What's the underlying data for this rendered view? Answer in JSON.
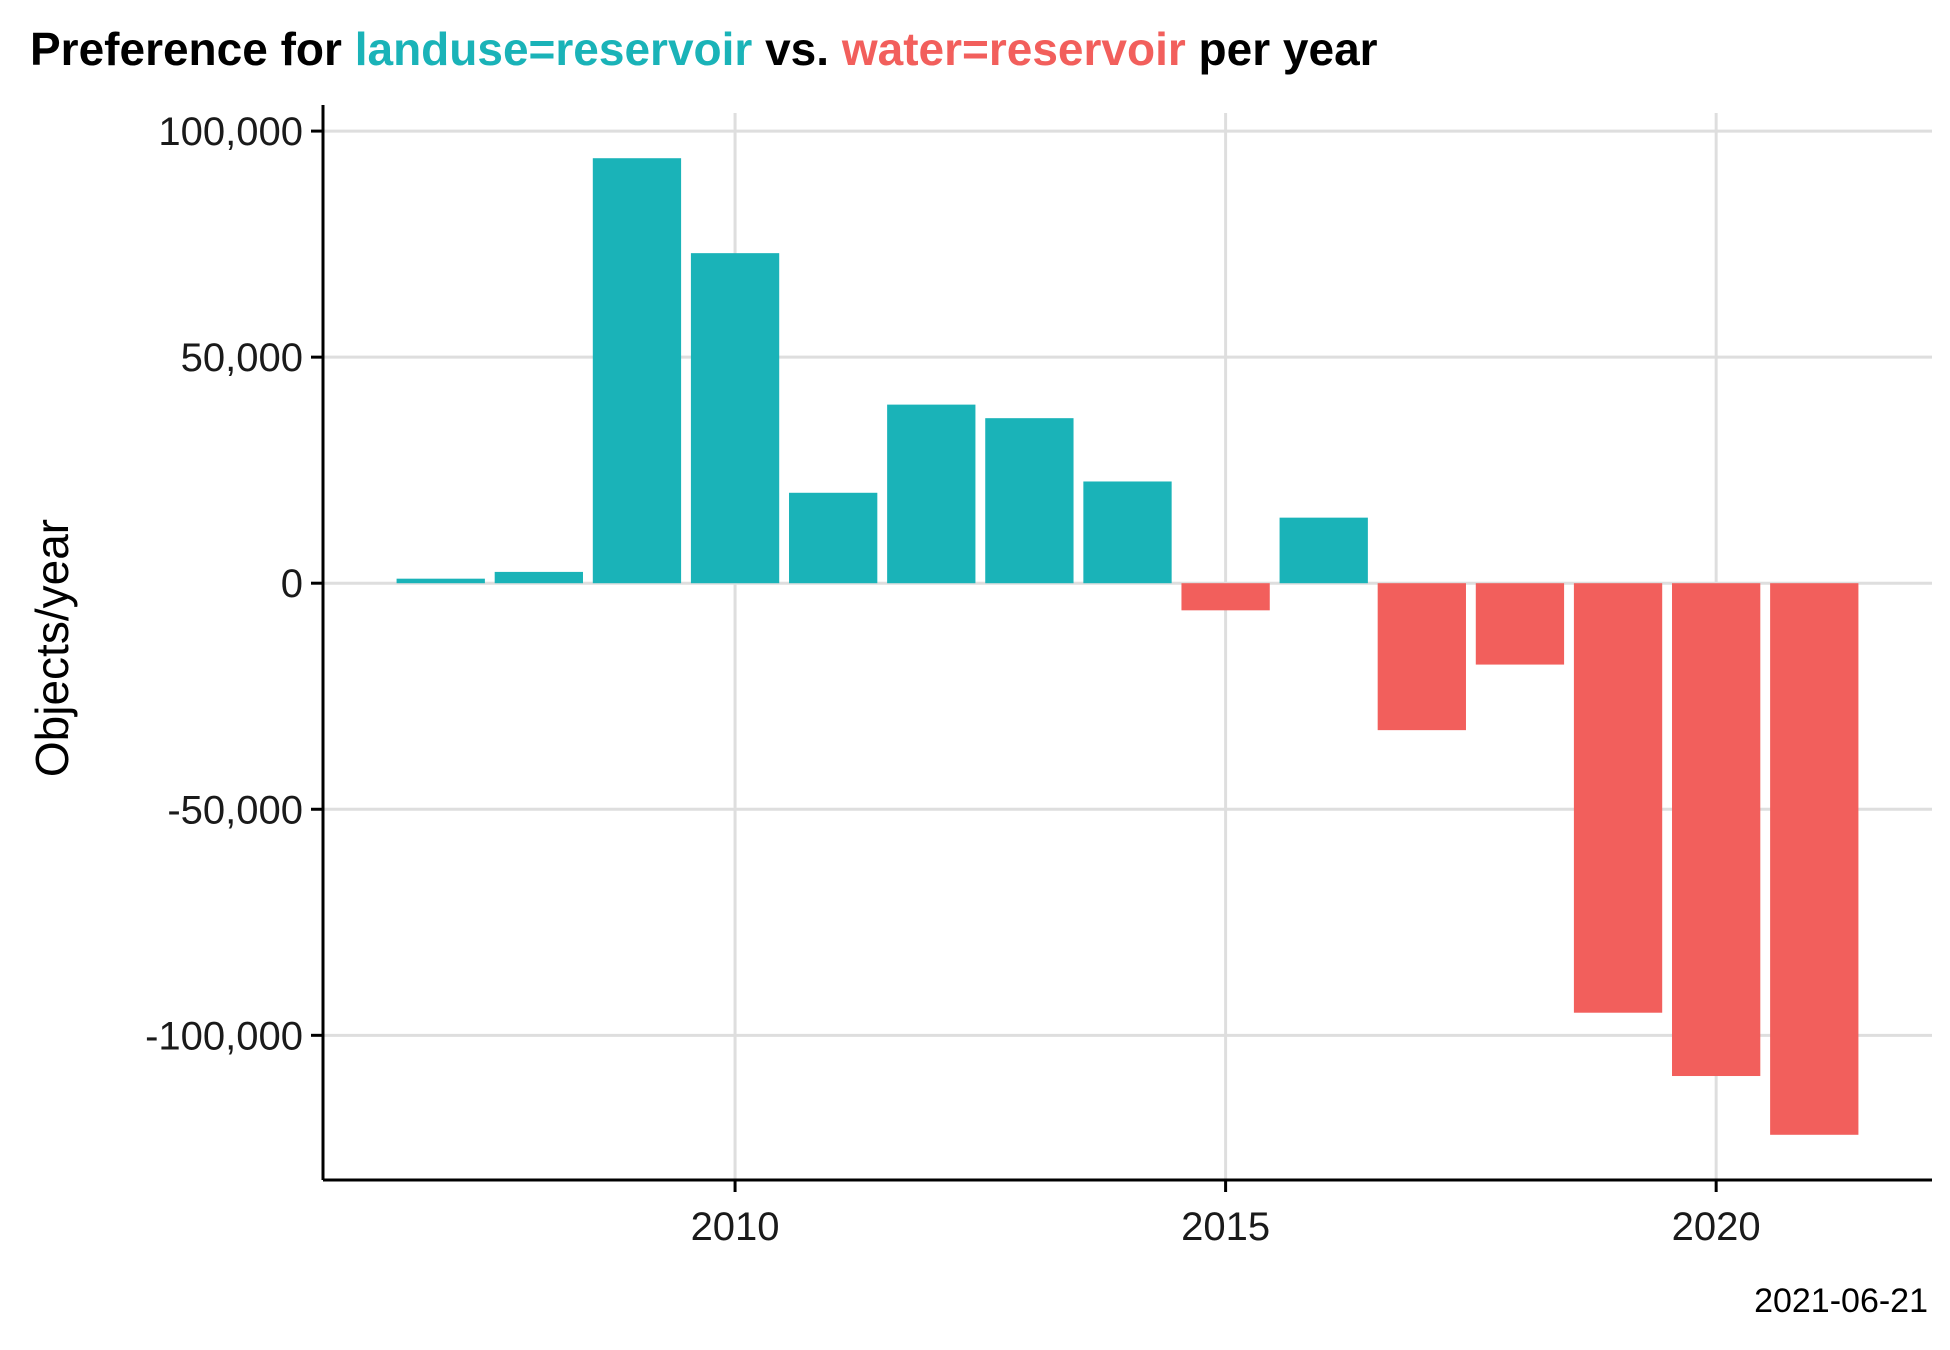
{
  "title": {
    "prefix": "Preference for ",
    "term_a": "landuse=reservoir",
    "middle": " vs. ",
    "term_b": "water=reservoir",
    "suffix": " per year"
  },
  "caption": "2021-06-21",
  "colors": {
    "positive": "#1ab3b8",
    "negative": "#f25f5c",
    "grid": "#dedede",
    "axis": "#000000"
  },
  "chart_data": {
    "type": "bar",
    "title": "Preference for landuse=reservoir vs. water=reservoir per year",
    "xlabel": "",
    "ylabel": "Objects/year",
    "x": [
      2007,
      2008,
      2009,
      2010,
      2011,
      2012,
      2013,
      2014,
      2015,
      2016,
      2017,
      2018,
      2019,
      2020,
      2021
    ],
    "values": [
      1000,
      2500,
      94000,
      73000,
      20000,
      39500,
      36500,
      22500,
      -6000,
      14500,
      -32500,
      -18000,
      -95000,
      -109000,
      -122000
    ],
    "xlim": [
      2005.8,
      2022.2
    ],
    "ylim": [
      -132000,
      104000
    ],
    "x_ticks": [
      2010,
      2015,
      2020
    ],
    "y_ticks": [
      -100000,
      -50000,
      0,
      50000,
      100000
    ],
    "y_tick_labels": [
      "-100,000",
      "-50,000",
      "0",
      "50,000",
      "100,000"
    ],
    "grid": true,
    "legend": "none"
  }
}
